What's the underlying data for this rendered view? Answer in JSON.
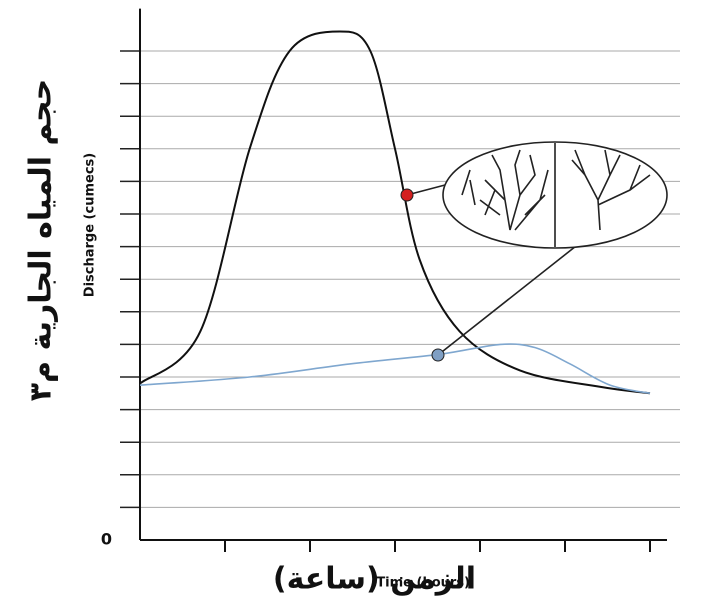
{
  "chart_data": {
    "type": "line",
    "y_label": "حجم المياه الجارية م٣",
    "y_label_en": "Discharge (cumecs)",
    "x_label": "Time (hours)",
    "x_label_ar": "الزمن (ساعة)",
    "xlim": [
      0,
      6.2
    ],
    "ylim": [
      0,
      16.3
    ],
    "yticks": [
      0
    ],
    "ygrid": [
      1,
      2,
      3,
      4,
      5,
      6,
      7,
      8,
      9,
      10,
      11,
      12,
      13,
      14,
      15
    ],
    "xtick_marks": [
      1,
      2,
      3,
      4,
      5,
      6
    ],
    "grid": true,
    "series": [
      {
        "color": "#111111",
        "x": [
          0,
          0.71,
          1.29,
          1.76,
          2.35,
          2.71,
          3.0,
          3.29,
          3.76,
          4.47,
          5.41,
          6.0
        ],
        "values": [
          4.8,
          6.4,
          12.0,
          15.0,
          15.6,
          15.0,
          12.0,
          8.6,
          6.4,
          5.2,
          4.7,
          4.5
        ]
      },
      {
        "color": "#7fa7cf",
        "x": [
          0,
          1.29,
          2.47,
          3.53,
          4.24,
          4.65,
          5.06,
          5.53,
          6.0
        ],
        "values": [
          4.75,
          5.0,
          5.4,
          5.7,
          6.0,
          5.9,
          5.4,
          4.75,
          4.5
        ]
      }
    ]
  }
}
